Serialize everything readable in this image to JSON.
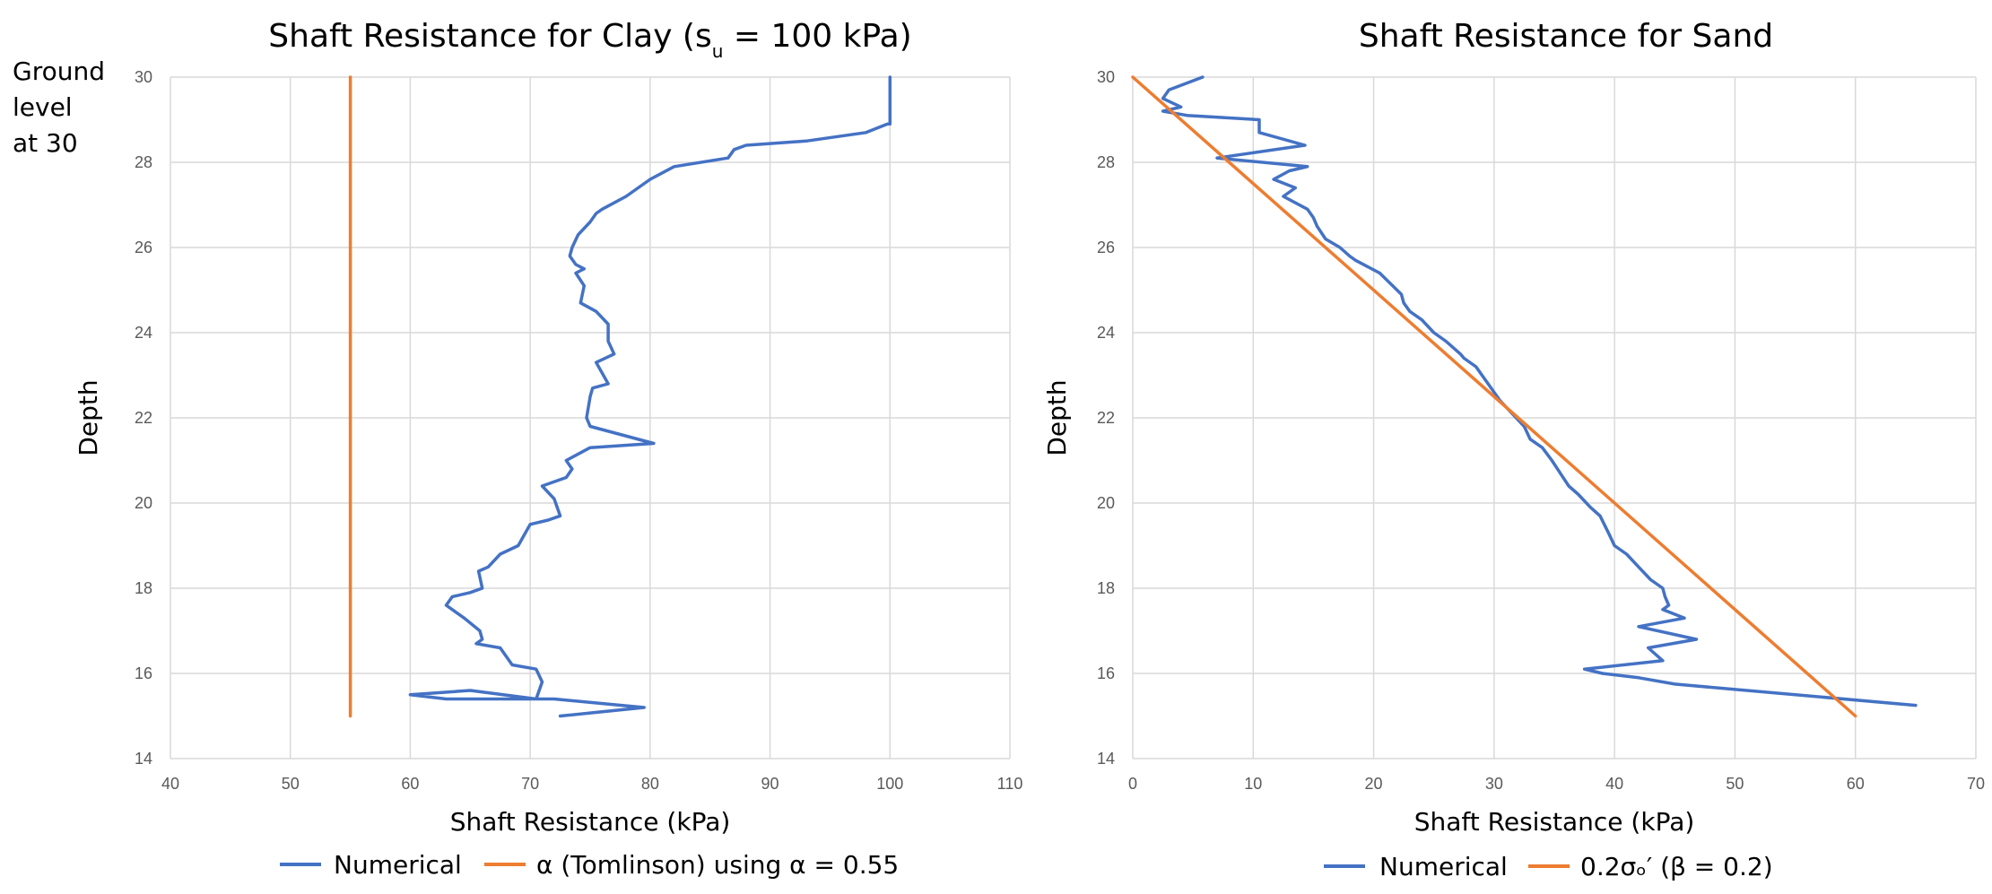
{
  "annotation": {
    "lines": [
      "Ground",
      "level",
      "at 30"
    ]
  },
  "colors": {
    "numerical": "#4472C4",
    "reference": "#ED7D31",
    "grid": "#D9D9D9",
    "axis_text": "#595959"
  },
  "chart_data": [
    {
      "type": "line",
      "title_main": "Shaft Resistance for Clay (s",
      "title_sub": "u",
      "title_tail": " = 100 kPa)",
      "xlabel": "Shaft Resistance (kPa)",
      "ylabel": "Depth",
      "xlim": [
        40,
        110
      ],
      "ylim": [
        14,
        30
      ],
      "xticks": [
        40,
        50,
        60,
        70,
        80,
        90,
        100,
        110
      ],
      "yticks": [
        14,
        16,
        18,
        20,
        22,
        24,
        26,
        28,
        30
      ],
      "grid": true,
      "legend_position": "bottom",
      "series": [
        {
          "name": "Numerical",
          "legend_label": "Numerical",
          "color": "#4472C4",
          "x": [
            100,
            100,
            99.8,
            98,
            93,
            88,
            87,
            86.5,
            82,
            80,
            78,
            76,
            75.5,
            75,
            74,
            73.5,
            73.3,
            73.8,
            74.5,
            73.8,
            74.5,
            74.2,
            75.5,
            76.5,
            76.5,
            77,
            75.5,
            76.5,
            75.2,
            75,
            74.7,
            75,
            80.3,
            75,
            73,
            73.5,
            73,
            71,
            72,
            72.5,
            71.5,
            70,
            69,
            67.5,
            66.5,
            65.7,
            66,
            65,
            63.5,
            63,
            64.5,
            65.8,
            66,
            65.5,
            67.5,
            68.5,
            70.5,
            71,
            70.5,
            65,
            60,
            63,
            72,
            79.5,
            76,
            72.5
          ],
          "y": [
            30,
            28.9,
            28.9,
            28.7,
            28.5,
            28.4,
            28.3,
            28.1,
            27.9,
            27.6,
            27.2,
            26.9,
            26.8,
            26.6,
            26.3,
            26.0,
            25.8,
            25.6,
            25.5,
            25.4,
            25.1,
            24.7,
            24.5,
            24.2,
            23.8,
            23.5,
            23.3,
            22.8,
            22.7,
            22.5,
            22.0,
            21.8,
            21.4,
            21.3,
            21.0,
            20.8,
            20.6,
            20.4,
            20.1,
            19.7,
            19.6,
            19.5,
            19.0,
            18.8,
            18.5,
            18.4,
            18.0,
            17.9,
            17.8,
            17.6,
            17.3,
            17.0,
            16.8,
            16.7,
            16.6,
            16.2,
            16.1,
            15.8,
            15.4,
            15.6,
            15.5,
            15.4,
            15.4,
            15.2,
            15.1,
            15.0
          ]
        },
        {
          "name": "alpha (Tomlinson)",
          "legend_label": "α (Tomlinson) using α = 0.55",
          "color": "#ED7D31",
          "x": [
            55,
            55
          ],
          "y": [
            30,
            15
          ]
        }
      ]
    },
    {
      "type": "line",
      "title_main": "Shaft Resistance for Sand",
      "title_sub": "",
      "title_tail": "",
      "xlabel": "Shaft Resistance (kPa)",
      "ylabel": "Depth",
      "xlim": [
        0,
        70
      ],
      "ylim": [
        14,
        30
      ],
      "xticks": [
        0,
        10,
        20,
        30,
        40,
        50,
        60,
        70
      ],
      "yticks": [
        14,
        16,
        18,
        20,
        22,
        24,
        26,
        28,
        30
      ],
      "grid": true,
      "legend_position": "bottom",
      "series": [
        {
          "name": "Numerical",
          "legend_label": "Numerical",
          "color": "#4472C4",
          "x": [
            5.8,
            3,
            2.5,
            4,
            2.5,
            4.5,
            10.5,
            10.5,
            14.3,
            7,
            14.5,
            13,
            11.7,
            13.5,
            12.5,
            14.5,
            15,
            15.3,
            16,
            17.2,
            18,
            18.5,
            20.5,
            22.3,
            22.5,
            23,
            24,
            25,
            26,
            27.2,
            27.5,
            28.5,
            29,
            30,
            30.5,
            31.5,
            32.5,
            33,
            34,
            34.8,
            35.5,
            36.2,
            37,
            38,
            38.8,
            39.5,
            40,
            41,
            42,
            43,
            44,
            44.2,
            44.5,
            44,
            45.8,
            42,
            46.8,
            42.8,
            44,
            37.5,
            39,
            42,
            45,
            65
          ],
          "y": [
            30,
            29.7,
            29.5,
            29.3,
            29.2,
            29.1,
            29.0,
            28.7,
            28.4,
            28.1,
            27.9,
            27.8,
            27.6,
            27.4,
            27.2,
            26.9,
            26.7,
            26.5,
            26.2,
            26.0,
            25.8,
            25.7,
            25.4,
            24.9,
            24.7,
            24.5,
            24.3,
            24.0,
            23.8,
            23.5,
            23.4,
            23.2,
            23.0,
            22.6,
            22.4,
            22.1,
            21.8,
            21.5,
            21.3,
            21.0,
            20.7,
            20.4,
            20.2,
            19.9,
            19.7,
            19.3,
            19.0,
            18.8,
            18.5,
            18.2,
            18.0,
            17.8,
            17.6,
            17.5,
            17.3,
            17.1,
            16.8,
            16.6,
            16.3,
            16.1,
            16.0,
            15.9,
            15.75,
            15.25
          ]
        },
        {
          "name": "beta method",
          "legend_label": "0.2σₒ′ (β = 0.2)",
          "color": "#ED7D31",
          "x": [
            0,
            60
          ],
          "y": [
            30,
            15
          ]
        }
      ]
    }
  ]
}
